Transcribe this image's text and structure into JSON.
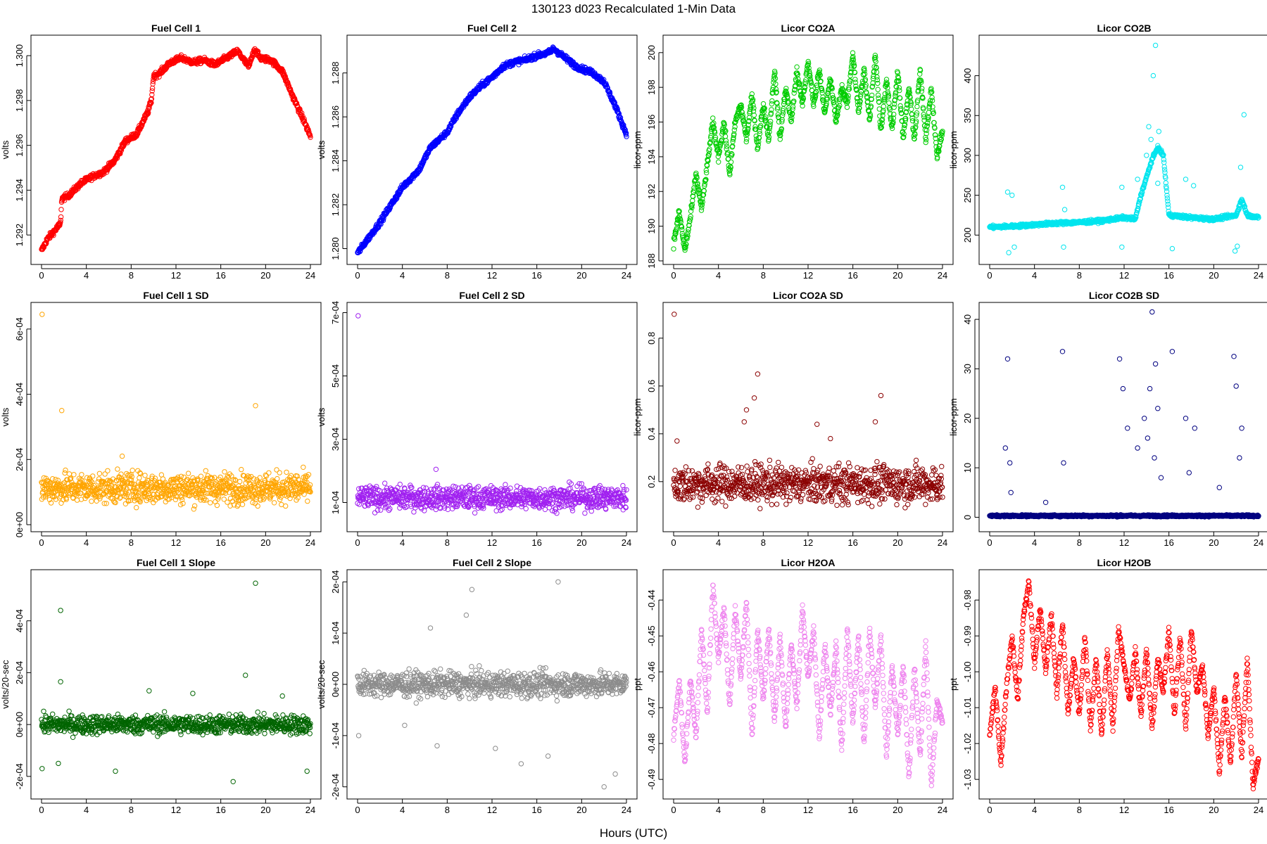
{
  "page": {
    "title": "130123   d023   Recalculated 1-Min Data",
    "xlabel": "Hours (UTC)"
  },
  "chart_data": [
    {
      "type": "scatter",
      "title": "Fuel Cell 1",
      "ylabel": "volts",
      "color": "#ff0000",
      "xlim": [
        0,
        24
      ],
      "xticks": [
        0,
        4,
        8,
        12,
        16,
        20,
        24
      ],
      "ylim": [
        1.291,
        1.3006
      ],
      "yticks": [
        1.292,
        1.294,
        1.296,
        1.298,
        1.3
      ],
      "ytick_labels": [
        "1.292",
        "1.294",
        "1.296",
        "1.298",
        "1.300"
      ],
      "x": [
        0,
        0.5,
        1.0,
        1.7,
        1.8,
        2.5,
        3.5,
        4.5,
        5.5,
        6.5,
        7.5,
        8.5,
        9.5,
        9.8,
        10.0,
        10.5,
        11.5,
        12.5,
        13.5,
        14.5,
        15.5,
        16.5,
        17.5,
        18.5,
        19.0,
        19.5,
        20.5,
        21.5,
        22.5,
        23.5,
        24
      ],
      "values": [
        1.2913,
        1.2918,
        1.2921,
        1.2925,
        1.2936,
        1.2938,
        1.2943,
        1.2946,
        1.2948,
        1.2953,
        1.2962,
        1.2965,
        1.2975,
        1.298,
        1.2991,
        1.2992,
        1.2997,
        1.2999,
        1.2997,
        1.2998,
        1.2996,
        1.2999,
        1.3002,
        1.2995,
        1.3003,
        1.2999,
        1.2998,
        1.2993,
        1.2981,
        1.297,
        1.2964
      ],
      "noise": 0.00012
    },
    {
      "type": "scatter",
      "title": "Fuel Cell 2",
      "ylabel": "volts",
      "color": "#0000ff",
      "xlim": [
        0,
        24
      ],
      "xticks": [
        0,
        4,
        8,
        12,
        16,
        20,
        24
      ],
      "ylim": [
        1.2796,
        1.2894
      ],
      "yticks": [
        1.28,
        1.282,
        1.284,
        1.286,
        1.288
      ],
      "ytick_labels": [
        "1.280",
        "1.282",
        "1.284",
        "1.286",
        "1.288"
      ],
      "x": [
        0,
        2,
        4,
        5.5,
        6.5,
        8,
        9,
        10,
        11,
        12,
        13,
        14,
        15,
        16,
        17,
        17.5,
        18.5,
        19.5,
        21,
        22,
        23,
        24
      ],
      "values": [
        1.2798,
        1.2812,
        1.2828,
        1.2836,
        1.2846,
        1.2853,
        1.2862,
        1.2869,
        1.2874,
        1.2878,
        1.2883,
        1.2885,
        1.2886,
        1.2888,
        1.2889,
        1.2891,
        1.2887,
        1.2883,
        1.288,
        1.2876,
        1.2865,
        1.2852
      ],
      "noise": 0.00012
    },
    {
      "type": "scatter",
      "title": "Licor CO2A",
      "ylabel": "licor-ppm",
      "color": "#00cd00",
      "xlim": [
        0,
        24
      ],
      "xticks": [
        0,
        4,
        8,
        12,
        16,
        20,
        24
      ],
      "ylim": [
        188.2,
        200.6
      ],
      "yticks": [
        188,
        190,
        192,
        194,
        196,
        198,
        200
      ],
      "ytick_labels": [
        "188",
        "190",
        "192",
        "194",
        "196",
        "198",
        "200"
      ],
      "x": [
        0,
        0.5,
        1.0,
        1.5,
        2.0,
        2.5,
        3.0,
        3.5,
        4.0,
        4.5,
        5.0,
        5.5,
        6.0,
        6.5,
        7.0,
        7.5,
        8.0,
        8.5,
        9.0,
        9.5,
        10.0,
        10.5,
        11.0,
        11.5,
        12.0,
        12.5,
        13.0,
        13.5,
        14.0,
        14.5,
        15.0,
        15.5,
        16.0,
        16.5,
        17.0,
        17.5,
        18.0,
        18.5,
        19.0,
        19.5,
        20.0,
        20.5,
        21.0,
        21.5,
        22.0,
        22.5,
        23.0,
        23.5,
        24
      ],
      "values": [
        189.0,
        190.8,
        188.6,
        190.5,
        193.0,
        191.0,
        193.5,
        196.0,
        194.0,
        196.0,
        193.0,
        196.0,
        197.0,
        195.0,
        197.5,
        194.5,
        197.0,
        195.0,
        199.0,
        195.0,
        198.0,
        196.0,
        199.0,
        197.0,
        199.5,
        197.0,
        199.0,
        196.5,
        198.5,
        196.0,
        198.0,
        197.0,
        200.0,
        196.5,
        199.0,
        196.0,
        200.0,
        195.5,
        198.5,
        195.5,
        199.0,
        195.0,
        198.0,
        195.0,
        199.0,
        195.0,
        198.0,
        194.0,
        195.5
      ],
      "noise": 0.25
    },
    {
      "type": "scatter",
      "title": "Licor CO2B",
      "ylabel": "licor-ppm",
      "color": "#00e5ee",
      "xlim": [
        0,
        24
      ],
      "xticks": [
        0,
        4,
        8,
        12,
        16,
        20,
        24
      ],
      "ylim": [
        172,
        442
      ],
      "yticks": [
        200,
        250,
        300,
        350,
        400
      ],
      "ytick_labels": [
        "200",
        "250",
        "300",
        "350",
        "400"
      ],
      "x": [
        0,
        2,
        4,
        6,
        8,
        10,
        11.5,
        12,
        13,
        13.5,
        14.5,
        15.0,
        15.5,
        16,
        18,
        20,
        22,
        22.5,
        23,
        24
      ],
      "values": [
        210,
        211,
        213,
        215,
        216,
        218,
        221,
        222,
        220,
        250,
        295,
        310,
        300,
        225,
        222,
        220,
        225,
        245,
        225,
        222
      ],
      "noise": 2,
      "outliers": [
        [
          1.6,
          254
        ],
        [
          1.7,
          178
        ],
        [
          2.0,
          250
        ],
        [
          2.2,
          185
        ],
        [
          6.5,
          260
        ],
        [
          6.6,
          185
        ],
        [
          6.7,
          232
        ],
        [
          11.8,
          260
        ],
        [
          11.8,
          185
        ],
        [
          14.4,
          320
        ],
        [
          14.6,
          400
        ],
        [
          14.8,
          438
        ],
        [
          14.2,
          336
        ],
        [
          13.2,
          270
        ],
        [
          15.0,
          265
        ],
        [
          16.3,
          183
        ],
        [
          17.5,
          270
        ],
        [
          18.2,
          262
        ],
        [
          21.9,
          180
        ],
        [
          22.1,
          186
        ],
        [
          22.7,
          351
        ],
        [
          22.4,
          285
        ],
        [
          14.0,
          300
        ],
        [
          15.1,
          330
        ]
      ]
    },
    {
      "type": "scatter",
      "title": "Fuel Cell 1 SD",
      "ylabel": "volts",
      "color": "#ffa500",
      "xlim": [
        0,
        24
      ],
      "xticks": [
        0,
        4,
        8,
        12,
        16,
        20,
        24
      ],
      "ylim": [
        0,
        0.00066
      ],
      "yticks": [
        0,
        0.0002,
        0.0004,
        0.0006
      ],
      "ytick_labels": [
        "0e+00",
        "2e-04",
        "4e-04",
        "6e-04"
      ],
      "band": [
        3.5e-05,
        0.00019
      ],
      "outliers": [
        [
          0.05,
          0.000645
        ],
        [
          1.8,
          0.00035
        ],
        [
          19.1,
          0.000365
        ],
        [
          7.2,
          0.00021
        ]
      ]
    },
    {
      "type": "scatter",
      "title": "Fuel Cell 2 SD",
      "ylabel": "volts",
      "color": "#a020f0",
      "xlim": [
        0,
        24
      ],
      "xticks": [
        0,
        4,
        8,
        12,
        16,
        20,
        24
      ],
      "ylim": [
        3e-05,
        0.00071
      ],
      "yticks": [
        0.0001,
        0.0003,
        0.0005,
        0.0007
      ],
      "ytick_labels": [
        "1e-04",
        "3e-04",
        "5e-04",
        "7e-04"
      ],
      "band": [
        5.5e-05,
        0.000175
      ],
      "outliers": [
        [
          0.05,
          0.00069
        ],
        [
          7.0,
          0.000205
        ]
      ]
    },
    {
      "type": "scatter",
      "title": "Licor CO2A SD",
      "ylabel": "licor-ppm",
      "color": "#8b0000",
      "xlim": [
        0,
        24
      ],
      "xticks": [
        0,
        4,
        8,
        12,
        16,
        20,
        24
      ],
      "ylim": [
        0.02,
        0.92
      ],
      "yticks": [
        0.2,
        0.4,
        0.6,
        0.8
      ],
      "ytick_labels": [
        "0.2",
        "0.4",
        "0.6",
        "0.8"
      ],
      "band": [
        0.06,
        0.32
      ],
      "outliers": [
        [
          0.05,
          0.9
        ],
        [
          7.5,
          0.65
        ],
        [
          6.5,
          0.5
        ],
        [
          7.2,
          0.55
        ],
        [
          6.3,
          0.45
        ],
        [
          12.8,
          0.44
        ],
        [
          18.5,
          0.56
        ],
        [
          18.0,
          0.45
        ],
        [
          14.0,
          0.38
        ],
        [
          0.3,
          0.37
        ]
      ]
    },
    {
      "type": "scatter",
      "title": "Licor CO2B SD",
      "ylabel": "licor-ppm",
      "color": "#000080",
      "xlim": [
        0,
        24
      ],
      "xticks": [
        0,
        4,
        8,
        12,
        16,
        20,
        24
      ],
      "ylim": [
        -1.5,
        42
      ],
      "yticks": [
        0,
        10,
        20,
        30,
        40
      ],
      "ytick_labels": [
        "0",
        "10",
        "20",
        "30",
        "40"
      ],
      "band": [
        0.0,
        0.6
      ],
      "outliers": [
        [
          1.6,
          32
        ],
        [
          1.4,
          14
        ],
        [
          1.8,
          11
        ],
        [
          1.9,
          5
        ],
        [
          6.5,
          33.5
        ],
        [
          6.6,
          11
        ],
        [
          5.0,
          3
        ],
        [
          11.6,
          32
        ],
        [
          11.9,
          26
        ],
        [
          12.3,
          18
        ],
        [
          13.2,
          14
        ],
        [
          14.5,
          41.5
        ],
        [
          14.8,
          31
        ],
        [
          14.3,
          26
        ],
        [
          15.0,
          22
        ],
        [
          13.8,
          20
        ],
        [
          14.1,
          16
        ],
        [
          14.7,
          12
        ],
        [
          15.3,
          8
        ],
        [
          16.3,
          33.5
        ],
        [
          17.5,
          20
        ],
        [
          18.3,
          18
        ],
        [
          17.8,
          9
        ],
        [
          21.8,
          32.5
        ],
        [
          22.0,
          26.5
        ],
        [
          22.5,
          18
        ],
        [
          22.3,
          12
        ],
        [
          20.5,
          6
        ]
      ]
    },
    {
      "type": "scatter",
      "title": "Fuel Cell 1 Slope",
      "ylabel": "volts/20-sec",
      "color": "#006400",
      "xlim": [
        0,
        24
      ],
      "xticks": [
        0,
        4,
        8,
        12,
        16,
        20,
        24
      ],
      "ylim": [
        -0.00026,
        0.00057
      ],
      "yticks": [
        -0.0002,
        0,
        0.0002,
        0.0004
      ],
      "ytick_labels": [
        "-2e-04",
        "0e+00",
        "2e-04",
        "4e-04"
      ],
      "band": [
        -6e-05,
        6e-05
      ],
      "outliers": [
        [
          19.1,
          0.000545
        ],
        [
          1.7,
          0.00044
        ],
        [
          1.7,
          0.000165
        ],
        [
          18.2,
          0.00019
        ],
        [
          17.1,
          -0.00022
        ],
        [
          0.05,
          -0.00017
        ],
        [
          1.5,
          -0.00015
        ],
        [
          6.6,
          -0.00018
        ],
        [
          23.7,
          -0.00018
        ],
        [
          9.6,
          0.00013
        ],
        [
          13.5,
          0.00012
        ],
        [
          21.5,
          0.00011
        ]
      ]
    },
    {
      "type": "scatter",
      "title": "Fuel Cell 2 Slope",
      "ylabel": "volts/20-sec",
      "color": "#8c8c8c",
      "xlim": [
        0,
        24
      ],
      "xticks": [
        0,
        4,
        8,
        12,
        16,
        20,
        24
      ],
      "ylim": [
        -0.00021,
        0.00021
      ],
      "yticks": [
        -0.0002,
        -0.0001,
        0,
        0.0001,
        0.0002
      ],
      "ytick_labels": [
        "-2e-04",
        "-1e-04",
        "0e+00",
        "1e-04",
        "2e-04"
      ],
      "band": [
        -4e-05,
        4e-05
      ],
      "outliers": [
        [
          17.9,
          0.0002
        ],
        [
          10.2,
          0.000185
        ],
        [
          9.7,
          0.000135
        ],
        [
          6.5,
          0.00011
        ],
        [
          22.0,
          -0.0002
        ],
        [
          23.0,
          -0.000175
        ],
        [
          14.6,
          -0.000155
        ],
        [
          0.1,
          -0.0001
        ],
        [
          7.1,
          -0.00012
        ],
        [
          17.0,
          -0.00014
        ],
        [
          12.3,
          -0.000125
        ],
        [
          4.2,
          -8e-05
        ]
      ]
    },
    {
      "type": "scatter",
      "title": "Licor H2OA",
      "ylabel": "ppt",
      "color": "#ee82ee",
      "xlim": [
        0,
        24
      ],
      "xticks": [
        0,
        4,
        8,
        12,
        16,
        20,
        24
      ],
      "ylim": [
        -0.4935,
        -0.4335
      ],
      "yticks": [
        -0.49,
        -0.48,
        -0.47,
        -0.46,
        -0.45,
        -0.44
      ],
      "ytick_labels": [
        "-0.49",
        "-0.48",
        "-0.47",
        "-0.46",
        "-0.45",
        "-0.44"
      ],
      "x": [
        0,
        0.5,
        1.0,
        1.5,
        2.0,
        2.5,
        3.0,
        3.5,
        4.0,
        4.5,
        5.0,
        5.5,
        6.0,
        6.5,
        7.0,
        7.5,
        8.0,
        8.5,
        9.0,
        9.5,
        10.0,
        10.5,
        11.0,
        11.5,
        12.0,
        12.5,
        13.0,
        13.5,
        14.0,
        14.5,
        15.0,
        15.5,
        16.0,
        16.5,
        17.0,
        17.5,
        18.0,
        18.5,
        19.0,
        19.5,
        20.0,
        20.5,
        21.0,
        21.5,
        22.0,
        22.5,
        23.0,
        23.5,
        24
      ],
      "values": [
        -0.478,
        -0.462,
        -0.486,
        -0.462,
        -0.478,
        -0.448,
        -0.472,
        -0.436,
        -0.456,
        -0.442,
        -0.47,
        -0.442,
        -0.462,
        -0.44,
        -0.478,
        -0.448,
        -0.468,
        -0.448,
        -0.474,
        -0.45,
        -0.476,
        -0.452,
        -0.47,
        -0.442,
        -0.462,
        -0.448,
        -0.478,
        -0.452,
        -0.472,
        -0.452,
        -0.482,
        -0.448,
        -0.474,
        -0.45,
        -0.48,
        -0.448,
        -0.47,
        -0.45,
        -0.484,
        -0.458,
        -0.478,
        -0.458,
        -0.49,
        -0.458,
        -0.484,
        -0.452,
        -0.492,
        -0.468,
        -0.474
      ],
      "noise": 0.0012
    },
    {
      "type": "scatter",
      "title": "Licor H2OB",
      "ylabel": "ppt",
      "color": "#ff0000",
      "xlim": [
        0,
        24
      ],
      "xticks": [
        0,
        4,
        8,
        12,
        16,
        20,
        24
      ],
      "ylim": [
        -1.0335,
        -0.9735
      ],
      "yticks": [
        -1.03,
        -1.02,
        -1.01,
        -1.0,
        -0.99,
        -0.98
      ],
      "ytick_labels": [
        "-1.03",
        "-1.02",
        "-1.01",
        "-1.00",
        "-0.99",
        "-0.98"
      ],
      "x": [
        0,
        0.5,
        1.0,
        1.5,
        2.0,
        2.5,
        3.0,
        3.5,
        4.0,
        4.5,
        5.0,
        5.5,
        6.0,
        6.5,
        7.0,
        7.5,
        8.0,
        8.5,
        9.0,
        9.5,
        10.0,
        10.5,
        11.0,
        11.5,
        12.0,
        12.5,
        13.0,
        13.5,
        14.0,
        14.5,
        15.0,
        15.5,
        16.0,
        16.5,
        17.0,
        17.5,
        18.0,
        18.5,
        19.0,
        19.5,
        20.0,
        20.5,
        21.0,
        21.5,
        22.0,
        22.5,
        23.0,
        23.5,
        24
      ],
      "values": [
        -1.018,
        -1.004,
        -1.026,
        -1.004,
        -0.99,
        -1.008,
        -0.985,
        -0.975,
        -0.998,
        -0.982,
        -1.0,
        -0.984,
        -1.006,
        -0.986,
        -1.012,
        -0.996,
        -1.012,
        -0.99,
        -1.016,
        -0.996,
        -1.018,
        -0.994,
        -1.016,
        -0.988,
        -0.998,
        -1.008,
        -0.994,
        -1.012,
        -0.994,
        -1.016,
        -0.996,
        -1.006,
        -0.988,
        -1.012,
        -0.99,
        -1.016,
        -0.988,
        -1.006,
        -0.998,
        -1.018,
        -1.004,
        -1.028,
        -1.006,
        -1.026,
        -1.0,
        -1.024,
        -0.996,
        -1.032,
        -1.024
      ],
      "noise": 0.0012
    }
  ]
}
